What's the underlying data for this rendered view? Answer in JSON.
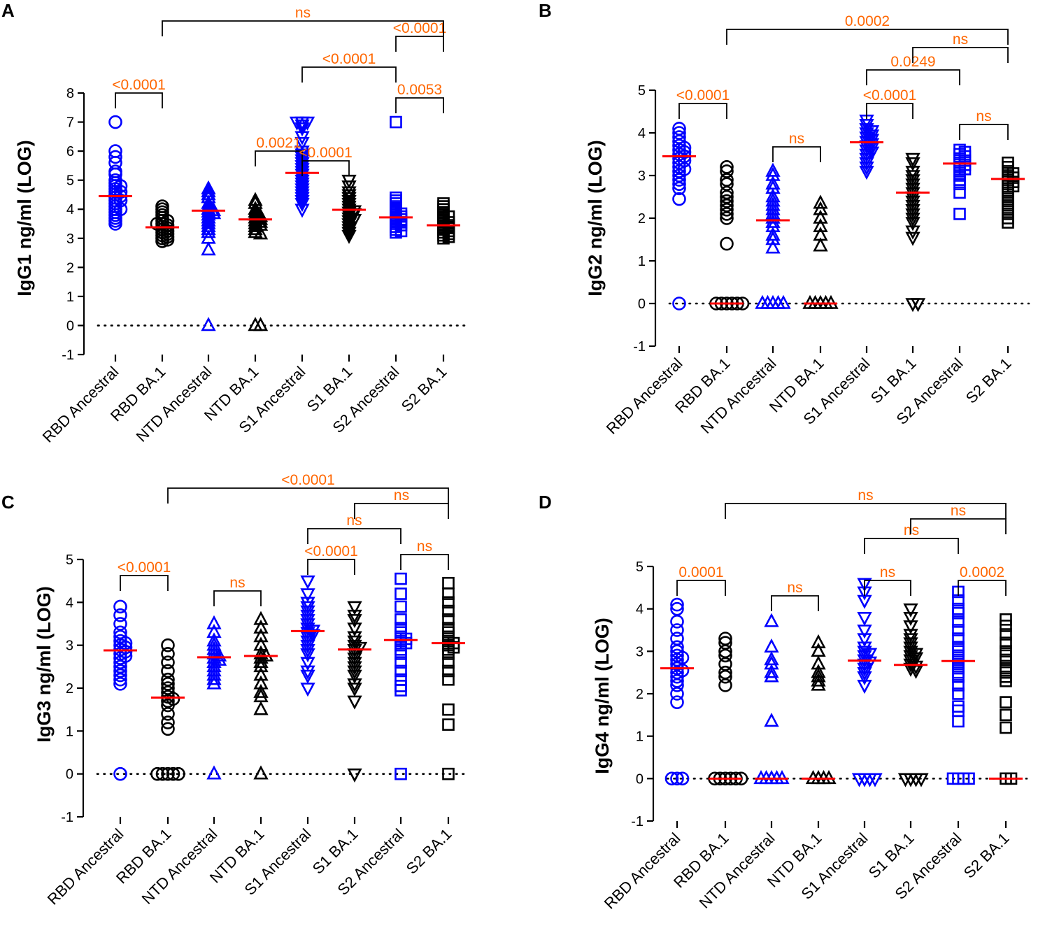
{
  "figure": {
    "colors": {
      "ancestral": "#0000ff",
      "ba1": "#000000",
      "median": "#ff0000",
      "comparison": "#ff6600"
    }
  },
  "chart_data": [
    {
      "type": "scatter",
      "panel": "A",
      "ylabel": "IgG1 ng/ml (LOG)",
      "ylim": [
        -1,
        8
      ],
      "yticks": [
        "-1",
        "0",
        "1",
        "2",
        "3",
        "4",
        "5",
        "6",
        "7",
        "8"
      ],
      "categories": [
        "RBD Ancestral",
        "RBD BA.1",
        "NTD Ancestral",
        "NTD BA.1",
        "S1 Ancestral",
        "S1 BA.1",
        "S2 Ancestral",
        "S2 BA.1"
      ],
      "markers": [
        "circle",
        "circle",
        "triangle-up",
        "triangle-up",
        "triangle-down",
        "triangle-down",
        "square",
        "square"
      ],
      "series_colors": [
        "ancestral",
        "ba1",
        "ancestral",
        "ba1",
        "ancestral",
        "ba1",
        "ancestral",
        "ba1"
      ],
      "medians": [
        4.45,
        3.38,
        3.95,
        3.65,
        5.25,
        3.98,
        3.72,
        3.45
      ],
      "points": [
        [
          7.0,
          6.0,
          5.8,
          5.6,
          5.3,
          5.2,
          5.0,
          4.9,
          4.8,
          4.7,
          4.6,
          4.5,
          4.45,
          4.4,
          4.3,
          4.2,
          4.1,
          4.0,
          3.9,
          3.8,
          3.7,
          3.6,
          3.5,
          4.6,
          4.3,
          4.8,
          4.0
        ],
        [
          4.1,
          4.0,
          3.9,
          3.8,
          3.7,
          3.6,
          3.5,
          3.45,
          3.4,
          3.35,
          3.3,
          3.2,
          3.1,
          3.0,
          2.95,
          2.9,
          3.6,
          3.25,
          3.15,
          3.5,
          3.05
        ],
        [
          4.7,
          4.5,
          4.4,
          4.2,
          4.1,
          4.0,
          3.95,
          3.9,
          3.8,
          3.7,
          3.6,
          3.5,
          3.4,
          3.3,
          3.2,
          3.0,
          2.6,
          0.0,
          4.6,
          3.85
        ],
        [
          4.3,
          4.2,
          4.0,
          3.9,
          3.8,
          3.7,
          3.65,
          3.6,
          3.55,
          3.5,
          3.4,
          3.3,
          3.2,
          3.15,
          0.0,
          0.0,
          3.75,
          3.45
        ],
        [
          7.0,
          7.0,
          7.0,
          6.8,
          6.5,
          6.3,
          6.0,
          5.8,
          5.6,
          5.5,
          5.4,
          5.3,
          5.2,
          5.1,
          5.0,
          4.9,
          4.8,
          4.7,
          4.6,
          4.5,
          4.4,
          4.2,
          4.0,
          6.9,
          5.9,
          5.7,
          4.3
        ],
        [
          5.0,
          4.8,
          4.6,
          4.4,
          4.3,
          4.2,
          4.1,
          4.0,
          3.95,
          3.9,
          3.8,
          3.7,
          3.6,
          3.5,
          3.4,
          3.3,
          3.2,
          3.1,
          4.5,
          3.85,
          3.65
        ],
        [
          7.0,
          4.4,
          4.3,
          4.2,
          4.0,
          3.9,
          3.8,
          3.75,
          3.7,
          3.65,
          3.6,
          3.55,
          3.5,
          3.4,
          3.3,
          3.25,
          3.2,
          4.1,
          3.85,
          3.45
        ],
        [
          4.2,
          4.1,
          4.0,
          3.9,
          3.8,
          3.7,
          3.6,
          3.5,
          3.45,
          3.4,
          3.35,
          3.3,
          3.25,
          3.2,
          3.1,
          3.05,
          3.0,
          3.75,
          3.55,
          3.15
        ]
      ],
      "comparisons": [
        {
          "a": 1,
          "b": 2,
          "label": "<0.0001"
        },
        {
          "a": 4,
          "b": 5,
          "label": "0.0021"
        },
        {
          "a": 5,
          "b": 6,
          "label": "<0.0001"
        },
        {
          "a": 7,
          "b": 8,
          "label": "0.0053"
        },
        {
          "a": 5,
          "b": 7,
          "label": "<0.0001"
        },
        {
          "a": 7,
          "b": 8,
          "label": "<0.0001"
        },
        {
          "a": 2,
          "b": 8,
          "label": "ns"
        }
      ]
    },
    {
      "type": "scatter",
      "panel": "B",
      "ylabel": "IgG2 ng/ml (LOG)",
      "ylim": [
        -1,
        5
      ],
      "yticks": [
        "-1",
        "0",
        "1",
        "2",
        "3",
        "4",
        "5"
      ],
      "categories": [
        "RBD Ancestral",
        "RBD BA.1",
        "NTD Ancestral",
        "NTD BA.1",
        "S1 Ancestral",
        "S1 BA.1",
        "S2 Ancestral",
        "S2 BA.1"
      ],
      "markers": [
        "circle",
        "circle",
        "triangle-up",
        "triangle-up",
        "triangle-down",
        "triangle-down",
        "square",
        "square"
      ],
      "series_colors": [
        "ancestral",
        "ba1",
        "ancestral",
        "ba1",
        "ancestral",
        "ba1",
        "ancestral",
        "ba1"
      ],
      "medians": [
        3.45,
        0.0,
        1.95,
        0.0,
        3.78,
        2.6,
        3.28,
        2.92
      ],
      "points": [
        [
          4.1,
          4.0,
          3.9,
          3.8,
          3.7,
          3.6,
          3.55,
          3.5,
          3.45,
          3.4,
          3.3,
          3.2,
          3.1,
          3.0,
          2.9,
          2.8,
          2.7,
          2.45,
          0.0,
          3.65,
          3.35,
          3.15
        ],
        [
          3.2,
          3.1,
          2.9,
          2.8,
          2.6,
          2.5,
          2.4,
          2.3,
          2.2,
          2.1,
          2.0,
          1.4,
          0.0,
          0.0,
          0.0,
          0.0,
          0.0,
          0.0
        ],
        [
          3.1,
          3.0,
          2.8,
          2.7,
          2.5,
          2.4,
          2.3,
          2.2,
          2.1,
          2.0,
          1.9,
          1.8,
          1.6,
          1.5,
          1.3,
          0.0,
          0.0,
          0.0,
          0.0,
          0.0
        ],
        [
          2.35,
          2.2,
          2.0,
          1.8,
          1.6,
          1.35,
          0.0,
          0.0,
          0.0,
          0.0,
          0.0
        ],
        [
          4.3,
          4.2,
          4.1,
          4.0,
          3.95,
          3.9,
          3.85,
          3.8,
          3.75,
          3.7,
          3.65,
          3.6,
          3.5,
          3.4,
          3.3,
          3.2,
          3.1,
          4.05,
          3.55
        ],
        [
          3.4,
          3.3,
          3.1,
          3.0,
          2.9,
          2.8,
          2.7,
          2.6,
          2.5,
          2.4,
          2.3,
          2.2,
          2.1,
          2.0,
          1.9,
          1.7,
          1.55,
          0.0,
          0.0
        ],
        [
          3.6,
          3.5,
          3.45,
          3.4,
          3.35,
          3.3,
          3.25,
          3.2,
          3.1,
          3.0,
          2.9,
          2.8,
          2.6,
          2.1,
          3.55,
          3.15
        ],
        [
          3.3,
          3.2,
          3.1,
          3.0,
          2.95,
          2.9,
          2.85,
          2.8,
          2.7,
          2.6,
          2.5,
          2.4,
          2.3,
          2.2,
          2.1,
          2.0,
          1.9,
          3.05,
          2.75
        ]
      ],
      "comparisons": [
        {
          "a": 1,
          "b": 2,
          "label": "<0.0001"
        },
        {
          "a": 3,
          "b": 4,
          "label": "ns"
        },
        {
          "a": 5,
          "b": 6,
          "label": "<0.0001"
        },
        {
          "a": 7,
          "b": 8,
          "label": "ns"
        },
        {
          "a": 5,
          "b": 7,
          "label": "0.0249"
        },
        {
          "a": 6,
          "b": 8,
          "label": "ns"
        },
        {
          "a": 2,
          "b": 8,
          "label": "0.0002"
        }
      ]
    },
    {
      "type": "scatter",
      "panel": "C",
      "ylabel": "IgG3 ng/ml (LOG)",
      "ylim": [
        -1,
        5
      ],
      "yticks": [
        "-1",
        "0",
        "1",
        "2",
        "3",
        "4",
        "5"
      ],
      "categories": [
        "RBD Ancestral",
        "RBD BA.1",
        "NTD Ancestral",
        "NTD BA.1",
        "S1 Ancestral",
        "S1 BA.1",
        "S2 Ancestral",
        "S2 BA.1"
      ],
      "markers": [
        "circle",
        "circle",
        "triangle-up",
        "triangle-up",
        "triangle-down",
        "triangle-down",
        "square",
        "square"
      ],
      "series_colors": [
        "ancestral",
        "ba1",
        "ancestral",
        "ba1",
        "ancestral",
        "ba1",
        "ancestral",
        "ba1"
      ],
      "medians": [
        2.88,
        1.78,
        2.72,
        2.75,
        3.33,
        2.9,
        3.12,
        3.05
      ],
      "points": [
        [
          3.9,
          3.7,
          3.5,
          3.3,
          3.2,
          3.1,
          3.0,
          2.95,
          2.9,
          2.85,
          2.8,
          2.7,
          2.6,
          2.5,
          2.4,
          2.3,
          2.2,
          2.1,
          0.0,
          3.05,
          2.75
        ],
        [
          3.0,
          2.8,
          2.6,
          2.4,
          2.2,
          2.0,
          1.9,
          1.8,
          1.7,
          1.6,
          1.4,
          1.2,
          1.05,
          0.0,
          0.0,
          0.0,
          0.0,
          0.0,
          2.1,
          1.75
        ],
        [
          3.5,
          3.3,
          3.1,
          3.0,
          2.9,
          2.8,
          2.7,
          2.6,
          2.5,
          2.4,
          2.3,
          2.2,
          2.1,
          0.0,
          2.75,
          2.65
        ],
        [
          3.6,
          3.4,
          3.2,
          3.0,
          2.8,
          2.7,
          2.6,
          2.5,
          2.3,
          2.1,
          1.9,
          1.8,
          1.5,
          0.0,
          2.75
        ],
        [
          4.5,
          4.2,
          4.0,
          3.9,
          3.8,
          3.7,
          3.6,
          3.5,
          3.4,
          3.35,
          3.3,
          3.2,
          3.1,
          3.0,
          2.9,
          2.8,
          2.6,
          2.4,
          2.3,
          2.0,
          3.25
        ],
        [
          3.9,
          3.7,
          3.6,
          3.4,
          3.2,
          3.1,
          3.0,
          2.95,
          2.9,
          2.8,
          2.7,
          2.6,
          2.5,
          2.4,
          2.3,
          2.1,
          2.0,
          1.7,
          0.0
        ],
        [
          4.55,
          4.2,
          3.9,
          3.6,
          3.4,
          3.3,
          3.2,
          3.15,
          3.1,
          3.05,
          3.0,
          2.9,
          2.8,
          2.6,
          2.4,
          2.2,
          2.05,
          1.95,
          0.0
        ],
        [
          4.45,
          4.2,
          4.0,
          3.8,
          3.6,
          3.4,
          3.3,
          3.2,
          3.1,
          3.05,
          3.0,
          2.95,
          2.9,
          2.8,
          2.6,
          2.4,
          2.2,
          1.5,
          1.15,
          0.0
        ]
      ],
      "comparisons": [
        {
          "a": 1,
          "b": 2,
          "label": "<0.0001"
        },
        {
          "a": 3,
          "b": 4,
          "label": "ns"
        },
        {
          "a": 5,
          "b": 6,
          "label": "<0.0001"
        },
        {
          "a": 7,
          "b": 8,
          "label": "ns"
        },
        {
          "a": 5,
          "b": 7,
          "label": "ns"
        },
        {
          "a": 6,
          "b": 8,
          "label": "ns"
        },
        {
          "a": 2,
          "b": 8,
          "label": "<0.0001"
        }
      ]
    },
    {
      "type": "scatter",
      "panel": "D",
      "ylabel": "IgG4 ng/ml (LOG)",
      "ylim": [
        -1,
        5
      ],
      "yticks": [
        "-1",
        "0",
        "1",
        "2",
        "3",
        "4",
        "5"
      ],
      "categories": [
        "RBD Ancestral",
        "RBD BA.1",
        "NTD Ancestral",
        "NTD BA.1",
        "S1 Ancestral",
        "S1 BA.1",
        "S2 Ancestral",
        "S2 BA.1"
      ],
      "markers": [
        "circle",
        "circle",
        "triangle-up",
        "triangle-up",
        "triangle-down",
        "triangle-down",
        "square",
        "square"
      ],
      "series_colors": [
        "ancestral",
        "ba1",
        "ancestral",
        "ba1",
        "ancestral",
        "ba1",
        "ancestral",
        "ba1"
      ],
      "medians": [
        2.6,
        0.0,
        0.0,
        0.0,
        2.78,
        2.68,
        2.77,
        0.0
      ],
      "points": [
        [
          4.1,
          4.0,
          3.7,
          3.5,
          3.3,
          3.1,
          3.0,
          2.9,
          2.8,
          2.7,
          2.6,
          2.5,
          2.4,
          2.3,
          2.2,
          2.0,
          1.8,
          0.0,
          0.0,
          0.0,
          2.85,
          2.55
        ],
        [
          3.3,
          3.2,
          3.0,
          2.9,
          2.7,
          2.5,
          2.4,
          2.2,
          0.0,
          0.0,
          0.0,
          0.0,
          0.0,
          0.0
        ],
        [
          3.7,
          3.1,
          2.8,
          2.7,
          2.5,
          2.4,
          1.35,
          0.0,
          0.0,
          0.0,
          0.0,
          0.0
        ],
        [
          3.2,
          3.0,
          2.7,
          2.5,
          2.4,
          2.3,
          2.2,
          0.0,
          0.0,
          0.0,
          0.0
        ],
        [
          4.6,
          4.4,
          4.2,
          3.8,
          3.5,
          3.3,
          3.1,
          3.0,
          2.9,
          2.8,
          2.75,
          2.7,
          2.6,
          2.5,
          2.4,
          2.2,
          0.0,
          0.0,
          0.0,
          0.0,
          2.95
        ],
        [
          4.0,
          3.8,
          3.6,
          3.4,
          3.3,
          3.2,
          3.1,
          3.0,
          2.95,
          2.9,
          2.85,
          2.8,
          2.7,
          2.65,
          2.6,
          2.55,
          0.0,
          0.0,
          0.0,
          0.0
        ],
        [
          4.4,
          4.2,
          4.0,
          3.9,
          3.7,
          3.5,
          3.3,
          3.1,
          3.0,
          2.9,
          2.8,
          2.7,
          2.6,
          2.5,
          2.4,
          2.2,
          2.0,
          1.7,
          1.6,
          1.35,
          0.0,
          0.0,
          0.0,
          0.0
        ],
        [
          3.75,
          3.6,
          3.4,
          3.2,
          3.0,
          2.9,
          2.8,
          2.6,
          2.5,
          2.4,
          2.3,
          1.8,
          1.5,
          1.2,
          0.0,
          0.0
        ]
      ],
      "comparisons": [
        {
          "a": 1,
          "b": 2,
          "label": "0.0001"
        },
        {
          "a": 3,
          "b": 4,
          "label": "ns"
        },
        {
          "a": 5,
          "b": 6,
          "label": "ns"
        },
        {
          "a": 7,
          "b": 8,
          "label": "0.0002"
        },
        {
          "a": 5,
          "b": 7,
          "label": "ns"
        },
        {
          "a": 6,
          "b": 8,
          "label": "ns"
        },
        {
          "a": 2,
          "b": 8,
          "label": "ns"
        }
      ]
    }
  ]
}
